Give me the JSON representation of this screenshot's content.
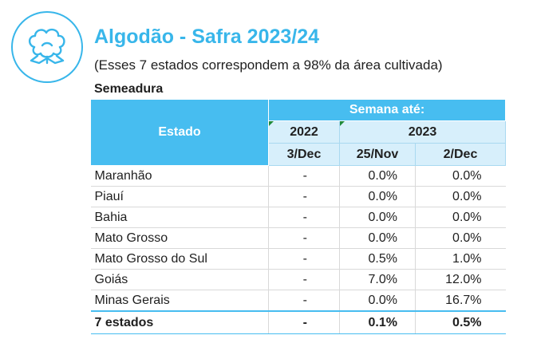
{
  "header": {
    "icon": "cotton-icon",
    "title": "Algodão - Safra 2023/24",
    "subtitle": "(Esses 7 estados correspondem a 98% da área cultivada)",
    "section": "Semeadura"
  },
  "table": {
    "col_estado": "Estado",
    "week_label": "Semana até:",
    "year_2022": "2022",
    "year_2023": "2023",
    "dates": [
      "3/Dec",
      "25/Nov",
      "2/Dec"
    ],
    "rows": [
      {
        "estado": "Maranhão",
        "v2022": "-",
        "nov25": "0.0%",
        "dec2": "0.0%"
      },
      {
        "estado": "Piauí",
        "v2022": "-",
        "nov25": "0.0%",
        "dec2": "0.0%"
      },
      {
        "estado": "Bahia",
        "v2022": "-",
        "nov25": "0.0%",
        "dec2": "0.0%"
      },
      {
        "estado": "Mato Grosso",
        "v2022": "-",
        "nov25": "0.0%",
        "dec2": "0.0%"
      },
      {
        "estado": "Mato Grosso do Sul",
        "v2022": "-",
        "nov25": "0.5%",
        "dec2": "1.0%"
      },
      {
        "estado": "Goiás",
        "v2022": "-",
        "nov25": "7.0%",
        "dec2": "12.0%"
      },
      {
        "estado": "Minas Gerais",
        "v2022": "-",
        "nov25": "0.0%",
        "dec2": "16.7%"
      }
    ],
    "total": {
      "estado": "7 estados",
      "v2022": "-",
      "nov25": "0.1%",
      "dec2": "0.5%"
    }
  },
  "colors": {
    "accent": "#38b6ea",
    "header_fill": "#47bdf0",
    "subheader_fill": "#d7effb"
  }
}
